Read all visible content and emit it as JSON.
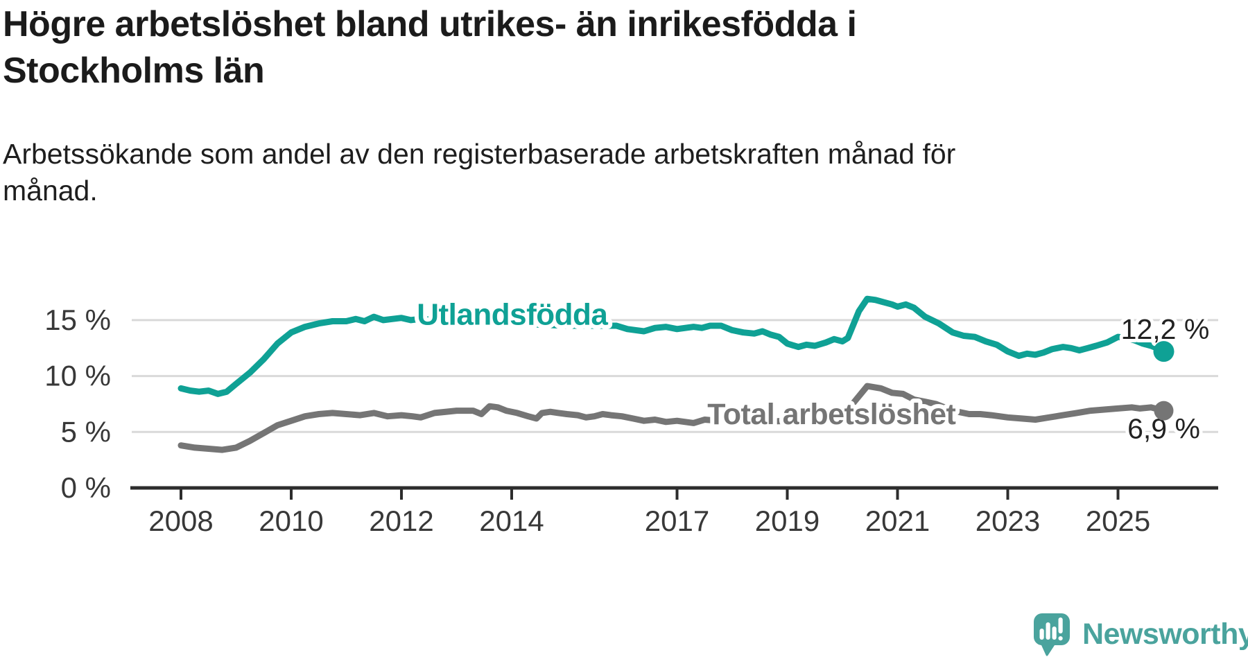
{
  "header": {
    "title": "Högre arbetslöshet bland utrikes- än inrikesfödda i Stockholms län",
    "subtitle": "Arbetssökande som andel av den registerbaserade arbetskraften månad för månad."
  },
  "branding": {
    "logo_text": "Newsworthy",
    "logo_color": "#4aa39d",
    "logo_icon": "newsworthy-speech-bubble-bar-chart-icon"
  },
  "chart_data": {
    "type": "line",
    "title": "Högre arbetslöshet bland utrikes- än inrikesfödda i Stockholms län",
    "subtitle": "Arbetssökande som andel av den registerbaserade arbetskraften månad för månad.",
    "grid": true,
    "x_axis": {
      "range": [
        2007.6,
        2026.2
      ],
      "ticks": [
        {
          "value": 2008,
          "label": "2008"
        },
        {
          "value": 2010,
          "label": "2010"
        },
        {
          "value": 2012,
          "label": "2012"
        },
        {
          "value": 2014,
          "label": "2014"
        },
        {
          "value": 2017,
          "label": "2017"
        },
        {
          "value": 2019,
          "label": "2019"
        },
        {
          "value": 2021,
          "label": "2021"
        },
        {
          "value": 2023,
          "label": "2023"
        },
        {
          "value": 2025,
          "label": "2025"
        }
      ]
    },
    "y_axis": {
      "range": [
        0,
        18.5
      ],
      "unit": "%",
      "ticks": [
        {
          "value": 0,
          "label": "0 %"
        },
        {
          "value": 5,
          "label": "5 %"
        },
        {
          "value": 10,
          "label": "10 %"
        },
        {
          "value": 15,
          "label": "15 %"
        }
      ]
    },
    "series": [
      {
        "id": "total-arbetsloshet",
        "name": "Total arbetslöshet",
        "color": "#757575",
        "line_width": 9,
        "end_dot_radius": 14,
        "end_value": 6.9,
        "end_label": {
          "text": "6,9 %",
          "dx": 0,
          "dy": 40
        },
        "inline_label": {
          "text": "Total arbetslöshet",
          "x": 2017.55,
          "v": 5.7,
          "font_size": 43
        },
        "points": [
          [
            2008.0,
            3.8
          ],
          [
            2008.25,
            3.6
          ],
          [
            2008.5,
            3.5
          ],
          [
            2008.75,
            3.4
          ],
          [
            2009.0,
            3.6
          ],
          [
            2009.25,
            4.2
          ],
          [
            2009.5,
            4.9
          ],
          [
            2009.75,
            5.6
          ],
          [
            2010.0,
            6.0
          ],
          [
            2010.25,
            6.4
          ],
          [
            2010.5,
            6.6
          ],
          [
            2010.75,
            6.7
          ],
          [
            2011.0,
            6.6
          ],
          [
            2011.25,
            6.5
          ],
          [
            2011.5,
            6.7
          ],
          [
            2011.75,
            6.4
          ],
          [
            2012.0,
            6.5
          ],
          [
            2012.2,
            6.4
          ],
          [
            2012.35,
            6.3
          ],
          [
            2012.6,
            6.7
          ],
          [
            2013.0,
            6.9
          ],
          [
            2013.3,
            6.9
          ],
          [
            2013.45,
            6.6
          ],
          [
            2013.6,
            7.3
          ],
          [
            2013.75,
            7.2
          ],
          [
            2013.9,
            6.9
          ],
          [
            2014.1,
            6.7
          ],
          [
            2014.3,
            6.4
          ],
          [
            2014.45,
            6.2
          ],
          [
            2014.55,
            6.7
          ],
          [
            2014.7,
            6.8
          ],
          [
            2014.85,
            6.7
          ],
          [
            2015.0,
            6.6
          ],
          [
            2015.2,
            6.5
          ],
          [
            2015.35,
            6.3
          ],
          [
            2015.5,
            6.4
          ],
          [
            2015.65,
            6.6
          ],
          [
            2015.8,
            6.5
          ],
          [
            2016.0,
            6.4
          ],
          [
            2016.2,
            6.2
          ],
          [
            2016.4,
            6.0
          ],
          [
            2016.6,
            6.1
          ],
          [
            2016.8,
            5.9
          ],
          [
            2017.0,
            6.0
          ],
          [
            2017.3,
            5.8
          ],
          [
            2017.5,
            6.1
          ],
          [
            2017.75,
            6.0
          ],
          [
            2018.0,
            6.0
          ],
          [
            2018.5,
            5.9
          ],
          [
            2019.0,
            6.0
          ],
          [
            2019.5,
            6.1
          ],
          [
            2019.75,
            6.0
          ],
          [
            2020.0,
            6.2
          ],
          [
            2020.2,
            7.6
          ],
          [
            2020.45,
            9.1
          ],
          [
            2020.7,
            8.9
          ],
          [
            2020.9,
            8.5
          ],
          [
            2021.1,
            8.4
          ],
          [
            2021.3,
            7.9
          ],
          [
            2021.5,
            7.7
          ],
          [
            2021.7,
            7.5
          ],
          [
            2021.9,
            7.1
          ],
          [
            2022.1,
            6.8
          ],
          [
            2022.3,
            6.6
          ],
          [
            2022.5,
            6.6
          ],
          [
            2022.7,
            6.5
          ],
          [
            2022.85,
            6.4
          ],
          [
            2023.0,
            6.3
          ],
          [
            2023.25,
            6.2
          ],
          [
            2023.5,
            6.1
          ],
          [
            2023.75,
            6.3
          ],
          [
            2024.0,
            6.5
          ],
          [
            2024.25,
            6.7
          ],
          [
            2024.5,
            6.9
          ],
          [
            2024.75,
            7.0
          ],
          [
            2025.0,
            7.1
          ],
          [
            2025.25,
            7.2
          ],
          [
            2025.4,
            7.1
          ],
          [
            2025.6,
            7.2
          ],
          [
            2025.75,
            7.0
          ],
          [
            2025.83,
            6.9
          ]
        ]
      },
      {
        "id": "utlandsfodda",
        "name": "Utlandsfödda",
        "color": "#0fa195",
        "line_width": 9,
        "end_dot_radius": 15,
        "end_value": 12.2,
        "end_label": {
          "text": "12,2 %",
          "dx": 2,
          "dy": -18
        },
        "inline_label": {
          "text": "Utlandsfödda",
          "x": 2012.28,
          "v": 14.6,
          "font_size": 44
        },
        "points": [
          [
            2008.0,
            8.9
          ],
          [
            2008.17,
            8.7
          ],
          [
            2008.33,
            8.6
          ],
          [
            2008.5,
            8.7
          ],
          [
            2008.67,
            8.4
          ],
          [
            2008.83,
            8.6
          ],
          [
            2009.0,
            9.3
          ],
          [
            2009.25,
            10.3
          ],
          [
            2009.5,
            11.5
          ],
          [
            2009.75,
            12.9
          ],
          [
            2010.0,
            13.9
          ],
          [
            2010.25,
            14.4
          ],
          [
            2010.5,
            14.7
          ],
          [
            2010.75,
            14.9
          ],
          [
            2011.0,
            14.9
          ],
          [
            2011.17,
            15.1
          ],
          [
            2011.33,
            14.9
          ],
          [
            2011.5,
            15.3
          ],
          [
            2011.67,
            15.0
          ],
          [
            2011.83,
            15.1
          ],
          [
            2012.0,
            15.2
          ],
          [
            2012.17,
            15.0
          ],
          [
            2012.33,
            15.1
          ],
          [
            2012.67,
            15.0
          ],
          [
            2013.0,
            14.9
          ],
          [
            2013.5,
            14.8
          ],
          [
            2014.0,
            14.7
          ],
          [
            2014.5,
            14.6
          ],
          [
            2015.0,
            14.5
          ],
          [
            2015.5,
            14.5
          ],
          [
            2015.9,
            14.5
          ],
          [
            2016.1,
            14.2
          ],
          [
            2016.25,
            14.1
          ],
          [
            2016.4,
            14.0
          ],
          [
            2016.6,
            14.3
          ],
          [
            2016.8,
            14.4
          ],
          [
            2017.0,
            14.2
          ],
          [
            2017.15,
            14.3
          ],
          [
            2017.3,
            14.4
          ],
          [
            2017.45,
            14.3
          ],
          [
            2017.6,
            14.5
          ],
          [
            2017.8,
            14.5
          ],
          [
            2018.0,
            14.1
          ],
          [
            2018.2,
            13.9
          ],
          [
            2018.4,
            13.8
          ],
          [
            2018.55,
            14.0
          ],
          [
            2018.7,
            13.7
          ],
          [
            2018.85,
            13.5
          ],
          [
            2019.0,
            12.9
          ],
          [
            2019.2,
            12.6
          ],
          [
            2019.35,
            12.8
          ],
          [
            2019.5,
            12.7
          ],
          [
            2019.7,
            13.0
          ],
          [
            2019.85,
            13.3
          ],
          [
            2020.0,
            13.1
          ],
          [
            2020.1,
            13.4
          ],
          [
            2020.3,
            15.8
          ],
          [
            2020.45,
            16.9
          ],
          [
            2020.6,
            16.8
          ],
          [
            2020.75,
            16.6
          ],
          [
            2020.9,
            16.4
          ],
          [
            2021.0,
            16.2
          ],
          [
            2021.15,
            16.4
          ],
          [
            2021.3,
            16.1
          ],
          [
            2021.5,
            15.3
          ],
          [
            2021.75,
            14.7
          ],
          [
            2022.0,
            13.9
          ],
          [
            2022.2,
            13.6
          ],
          [
            2022.4,
            13.5
          ],
          [
            2022.6,
            13.1
          ],
          [
            2022.8,
            12.8
          ],
          [
            2023.0,
            12.2
          ],
          [
            2023.2,
            11.8
          ],
          [
            2023.35,
            12.0
          ],
          [
            2023.5,
            11.9
          ],
          [
            2023.65,
            12.1
          ],
          [
            2023.8,
            12.4
          ],
          [
            2024.0,
            12.6
          ],
          [
            2024.15,
            12.5
          ],
          [
            2024.3,
            12.3
          ],
          [
            2024.45,
            12.5
          ],
          [
            2024.6,
            12.7
          ],
          [
            2024.8,
            13.0
          ],
          [
            2025.0,
            13.5
          ],
          [
            2025.15,
            13.4
          ],
          [
            2025.3,
            13.2
          ],
          [
            2025.45,
            12.9
          ],
          [
            2025.6,
            12.7
          ],
          [
            2025.75,
            12.4
          ],
          [
            2025.83,
            12.2
          ]
        ]
      }
    ],
    "colors": {
      "axis": "#2d2d2d",
      "gridline": "#d9d9d9",
      "tick_label": "#383838",
      "value_label": "#222222"
    }
  }
}
